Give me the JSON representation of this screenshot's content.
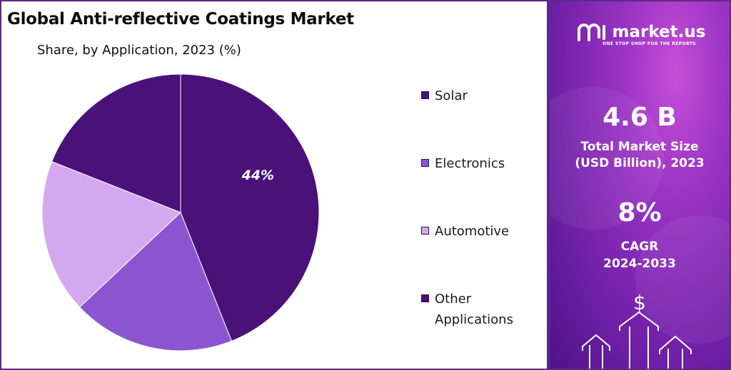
{
  "header": {
    "title": "Global Anti-reflective Coatings Market",
    "subtitle": "Share, by Application, 2023 (%)"
  },
  "chart_data": {
    "type": "pie",
    "title": "Global Anti-reflective Coatings Market",
    "subtitle": "Share, by Application, 2023 (%)",
    "categories": [
      "Solar",
      "Electronics",
      "Automotive",
      "Other Applications"
    ],
    "values": [
      44,
      19,
      18,
      19
    ],
    "labels": [
      "44%",
      "",
      "",
      ""
    ],
    "colors": [
      "#4a1179",
      "#8b55cf",
      "#d4a8ef",
      "#4a1179"
    ],
    "legend_position": "right",
    "start_angle": "12 o'clock",
    "direction": "clockwise"
  },
  "sidebar": {
    "brand": "market.us",
    "tagline": "ONE STOP SHOP FOR THE REPORTS",
    "market_size_value": "4.6 B",
    "market_size_label_1": "Total Market Size",
    "market_size_label_2": "(USD Billion), 2023",
    "cagr_value": "8%",
    "cagr_label_1": "CAGR",
    "cagr_label_2": "2024-2033",
    "currency_symbol": "$",
    "logo_icon": "market-us-logo-icon",
    "decor_icon": "growth-arrows-icon",
    "background_color": "#7b22ad"
  }
}
